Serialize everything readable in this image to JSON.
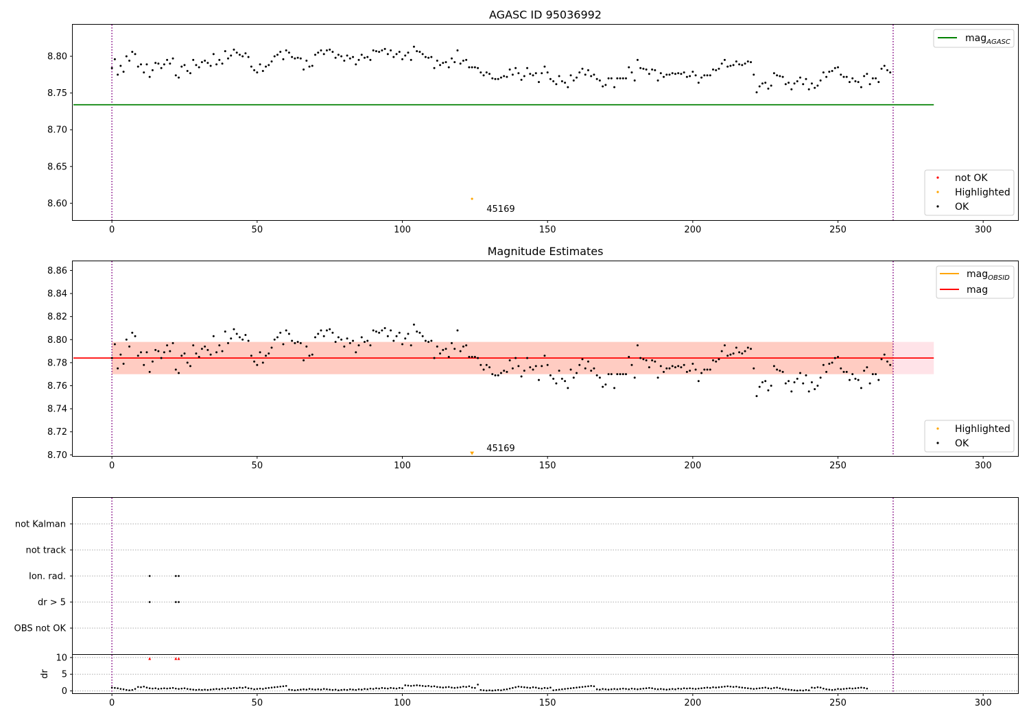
{
  "chart_data": [
    {
      "type": "scatter",
      "title": "AGASC ID 95036992",
      "xlim": [
        -13.5,
        312
      ],
      "ylim": [
        8.577,
        8.843
      ],
      "xticks": [
        "0",
        "50",
        "100",
        "150",
        "200",
        "250",
        "300"
      ],
      "yticks": [
        "8.60",
        "8.65",
        "8.70",
        "8.75",
        "8.80"
      ],
      "vlines": [
        0,
        269
      ],
      "hline": {
        "name": "mag_AGASC",
        "value": 8.734,
        "x_end": 283,
        "color": "#008000"
      },
      "points_ok_source": "shared_ok_series",
      "highlighted": [
        {
          "x": 124,
          "y": 8.606
        }
      ],
      "annotation": {
        "text": "45169",
        "x": 129,
        "y": 8.593
      },
      "legend_lines": [
        {
          "label": "mag",
          "subscript": "AGASC",
          "color": "#008000"
        }
      ],
      "legend_points": [
        {
          "label": "not OK",
          "color": "#ff0000"
        },
        {
          "label": "Highlighted",
          "color": "#ffa500"
        },
        {
          "label": "OK",
          "color": "#000000"
        }
      ]
    },
    {
      "type": "scatter",
      "title": "Magnitude Estimates",
      "xlim": [
        -13.5,
        312
      ],
      "ylim": [
        8.699,
        8.868
      ],
      "xticks": [
        "0",
        "50",
        "100",
        "150",
        "200",
        "250",
        "300"
      ],
      "yticks": [
        "8.70",
        "8.72",
        "8.74",
        "8.76",
        "8.78",
        "8.80",
        "8.82",
        "8.84",
        "8.86"
      ],
      "vlines": [
        0,
        269
      ],
      "band": {
        "low": 8.77,
        "high": 8.798,
        "x_end": 283
      },
      "band_inner": {
        "low": 8.77,
        "high": 8.798,
        "x_end": 269
      },
      "hline": {
        "name": "mag",
        "value": 8.784,
        "x_end": 283,
        "color": "#ff0000"
      },
      "points_ok_source": "shared_ok_series",
      "highlighted": [
        {
          "x": 124,
          "y": 8.701
        }
      ],
      "annotation": {
        "text": "45169",
        "x": 129,
        "y": 8.706
      },
      "legend_lines": [
        {
          "label": "mag",
          "subscript": "OBSID",
          "color": "#ffa500"
        },
        {
          "label": "mag",
          "subscript": "",
          "color": "#ff0000"
        }
      ],
      "legend_points": [
        {
          "label": "Highlighted",
          "color": "#ffa500"
        },
        {
          "label": "OK",
          "color": "#000000"
        }
      ]
    },
    {
      "type": "scatter",
      "xlim": [
        -13.5,
        312
      ],
      "xticks": [
        "0",
        "50",
        "100",
        "150",
        "200",
        "250",
        "300"
      ],
      "vlines": [
        0,
        269
      ],
      "flag_categories": [
        "not Kalman",
        "not track",
        "Ion. rad.",
        "dr > 5",
        "OBS not OK"
      ],
      "flag_points": [
        {
          "category": "Ion. rad.",
          "x": [
            13,
            22,
            23
          ]
        },
        {
          "category": "dr > 5",
          "x": [
            13,
            22,
            23
          ]
        }
      ],
      "dr_ylabel": "dr",
      "dr_ylim": [
        -0.7,
        10.8
      ],
      "dr_yticks": [
        "0",
        "5",
        "10"
      ],
      "dr_markers": [
        13,
        22,
        23
      ],
      "dr_values": [
        1.0,
        0.9,
        0.8,
        0.6,
        0.5,
        0.3,
        0.2,
        0.3,
        0.6,
        1.2,
        1.1,
        1.3,
        1.0,
        0.8,
        0.7,
        0.8,
        0.6,
        0.7,
        0.8,
        0.7,
        0.8,
        0.9,
        0.7,
        0.6,
        0.7,
        0.8,
        0.6,
        0.5,
        0.4,
        0.3,
        0.4,
        0.3,
        0.4,
        0.3,
        0.4,
        0.5,
        0.6,
        0.5,
        0.7,
        0.6,
        0.8,
        0.7,
        0.9,
        0.8,
        1.0,
        0.9,
        1.1,
        0.8,
        0.7,
        0.5,
        0.6,
        0.7,
        0.6,
        0.8,
        0.9,
        1.0,
        1.1,
        1.2,
        1.3,
        1.4,
        1.5,
        0.4,
        0.3,
        0.2,
        0.3,
        0.4,
        0.5,
        0.4,
        0.6,
        0.5,
        0.4,
        0.5,
        0.4,
        0.6,
        0.5,
        0.4,
        0.3,
        0.4,
        0.2,
        0.3,
        0.4,
        0.3,
        0.5,
        0.4,
        0.3,
        0.5,
        0.4,
        0.6,
        0.5,
        0.7,
        0.6,
        0.8,
        0.7,
        0.9,
        0.8,
        0.7,
        0.9,
        0.8,
        0.7,
        0.9,
        0.8,
        1.7,
        1.6,
        1.5,
        1.6,
        1.7,
        1.6,
        1.5,
        1.4,
        1.5,
        1.3,
        1.4,
        1.2,
        1.1,
        1.0,
        1.1,
        1.2,
        1.0,
        0.9,
        1.0,
        1.1,
        1.3,
        1.2,
        1.4,
        1.0,
        0.9,
        1.9,
        0.3,
        0.2,
        0.1,
        0.2,
        0.1,
        0.2,
        0.3,
        0.2,
        0.4,
        0.5,
        0.7,
        0.9,
        1.1,
        1.3,
        1.2,
        1.1,
        1.0,
        0.9,
        1.1,
        1.0,
        0.8,
        0.7,
        0.9,
        0.8,
        1.0,
        0.2,
        0.3,
        0.4,
        0.5,
        0.6,
        0.7,
        0.8,
        0.9,
        1.0,
        1.1,
        1.2,
        1.3,
        1.4,
        1.5,
        1.4,
        0.5,
        0.4,
        0.6,
        0.5,
        0.4,
        0.5,
        0.6,
        0.5,
        0.6,
        0.7,
        0.6,
        0.5,
        0.7,
        0.6,
        0.5,
        0.6,
        0.7,
        0.8,
        0.9,
        0.8,
        0.6,
        0.5,
        0.6,
        0.5,
        0.4,
        0.5,
        0.6,
        0.5,
        0.7,
        0.6,
        0.8,
        0.7,
        0.8,
        0.7,
        0.6,
        0.7,
        0.8,
        0.9,
        1.0,
        0.9,
        1.1,
        1.0,
        1.1,
        1.2,
        1.3,
        1.4,
        1.3,
        1.2,
        1.3,
        1.1,
        1.0,
        0.9,
        0.8,
        0.7,
        0.6,
        0.7,
        0.8,
        0.9,
        1.0,
        0.8,
        0.7,
        0.9,
        1.0,
        0.8,
        0.6,
        0.5,
        0.4,
        0.3,
        0.2,
        0.1,
        0.2,
        0.1,
        0.3,
        0.2,
        1.0,
        0.9,
        1.1,
        1.0,
        0.7,
        0.5,
        0.4,
        0.3,
        0.4,
        0.6,
        0.5,
        0.6,
        0.7,
        0.8,
        0.7,
        0.8,
        0.9,
        1.0,
        0.9,
        0.7
      ]
    }
  ],
  "shared_ok_series": {
    "x_start": 0,
    "y": [
      8.784,
      8.796,
      8.775,
      8.787,
      8.779,
      8.8,
      8.794,
      8.806,
      8.803,
      8.786,
      8.789,
      8.778,
      8.789,
      8.772,
      8.781,
      8.791,
      8.79,
      8.784,
      8.789,
      8.795,
      8.79,
      8.797,
      8.774,
      8.771,
      8.786,
      8.788,
      8.78,
      8.777,
      8.795,
      8.788,
      8.785,
      8.792,
      8.794,
      8.791,
      8.787,
      8.803,
      8.789,
      8.795,
      8.79,
      8.807,
      8.797,
      8.801,
      8.809,
      8.805,
      8.802,
      8.8,
      8.804,
      8.799,
      8.786,
      8.781,
      8.778,
      8.789,
      8.78,
      8.786,
      8.788,
      8.793,
      8.8,
      8.802,
      8.806,
      8.796,
      8.808,
      8.805,
      8.799,
      8.797,
      8.798,
      8.797,
      8.782,
      8.794,
      8.786,
      8.787,
      8.802,
      8.805,
      8.808,
      8.803,
      8.808,
      8.809,
      8.806,
      8.798,
      8.802,
      8.8,
      8.794,
      8.801,
      8.797,
      8.799,
      8.789,
      8.795,
      8.802,
      8.798,
      8.799,
      8.795,
      8.808,
      8.807,
      8.806,
      8.808,
      8.81,
      8.803,
      8.808,
      8.799,
      8.803,
      8.806,
      8.796,
      8.801,
      8.805,
      8.795,
      8.813,
      8.807,
      8.806,
      8.803,
      8.799,
      8.798,
      8.799,
      8.784,
      8.794,
      8.788,
      8.791,
      8.792,
      8.785,
      8.797,
      8.792,
      8.808,
      8.79,
      8.794,
      8.795,
      8.785,
      8.785,
      8.785,
      8.784,
      8.778,
      8.774,
      8.778,
      8.776,
      8.77,
      8.769,
      8.769,
      8.771,
      8.773,
      8.772,
      8.782,
      8.775,
      8.784,
      8.777,
      8.768,
      8.773,
      8.784,
      8.776,
      8.774,
      8.777,
      8.765,
      8.777,
      8.786,
      8.778,
      8.769,
      8.766,
      8.762,
      8.773,
      8.766,
      8.764,
      8.758,
      8.774,
      8.767,
      8.771,
      8.778,
      8.783,
      8.775,
      8.781,
      8.773,
      8.775,
      8.769,
      8.767,
      8.759,
      8.761,
      8.77,
      8.77,
      8.758,
      8.77,
      8.77,
      8.77,
      8.77,
      8.785,
      8.778,
      8.767,
      8.795,
      8.784,
      8.783,
      8.782,
      8.776,
      8.782,
      8.781,
      8.767,
      8.777,
      8.772,
      8.775,
      8.775,
      8.777,
      8.776,
      8.777,
      8.776,
      8.778,
      8.772,
      8.773,
      8.779,
      8.774,
      8.764,
      8.771,
      8.774,
      8.774,
      8.774,
      8.782,
      8.781,
      8.783,
      8.79,
      8.795,
      8.786,
      8.787,
      8.788,
      8.793,
      8.789,
      8.788,
      8.79,
      8.793,
      8.792,
      8.775,
      8.751,
      8.759,
      8.763,
      8.764,
      8.756,
      8.76,
      8.777,
      8.774,
      8.773,
      8.772,
      8.762,
      8.764,
      8.755,
      8.763,
      8.766,
      8.771,
      8.762,
      8.769,
      8.755,
      8.763,
      8.757,
      8.76,
      8.767,
      8.778,
      8.772,
      8.779,
      8.78,
      8.784,
      8.785,
      8.775,
      8.772,
      8.772,
      8.765,
      8.77,
      8.766,
      8.765,
      8.758,
      8.773,
      8.776,
      8.762,
      8.77,
      8.77,
      8.765,
      8.783,
      8.787,
      8.781,
      8.778
    ]
  }
}
